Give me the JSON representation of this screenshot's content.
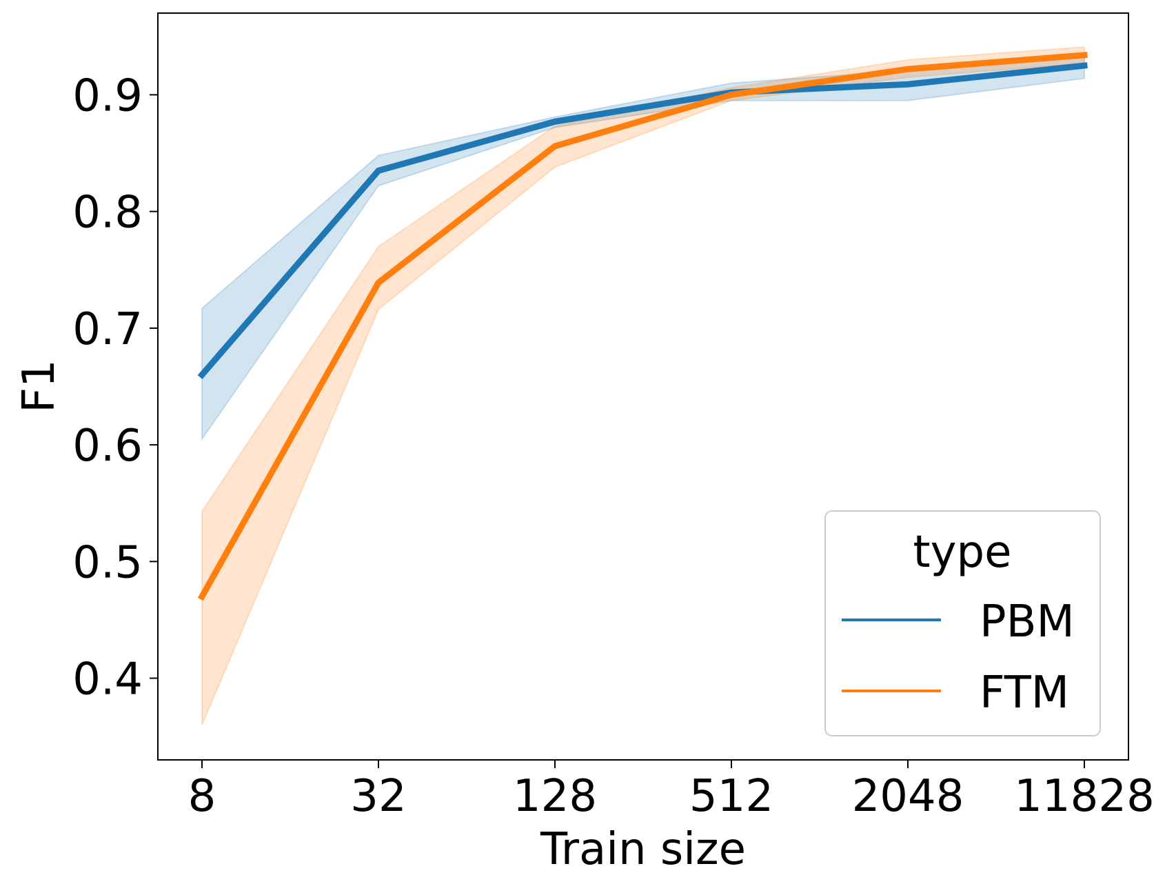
{
  "chart_data": {
    "type": "line",
    "title": "",
    "xlabel": "Train size",
    "ylabel": "F1",
    "x": [
      "8",
      "32",
      "128",
      "512",
      "2048",
      "11828"
    ],
    "ylim": [
      0.33,
      0.97
    ],
    "yticks": [
      "0.4",
      "0.5",
      "0.6",
      "0.7",
      "0.8",
      "0.9"
    ],
    "grid": false,
    "legend": {
      "title": "type",
      "placement": "bottom-right"
    },
    "series": [
      {
        "name": "PBM",
        "color": "#1f77b4",
        "values": [
          0.66,
          0.835,
          0.877,
          0.902,
          0.909,
          0.925
        ],
        "ci_lower": [
          0.605,
          0.822,
          0.872,
          0.895,
          0.895,
          0.914
        ],
        "ci_upper": [
          0.717,
          0.848,
          0.881,
          0.91,
          0.921,
          0.935
        ]
      },
      {
        "name": "FTM",
        "color": "#ff7f0e",
        "values": [
          0.47,
          0.739,
          0.856,
          0.9,
          0.922,
          0.934
        ],
        "ci_lower": [
          0.36,
          0.716,
          0.838,
          0.895,
          0.915,
          0.927
        ],
        "ci_upper": [
          0.543,
          0.77,
          0.873,
          0.906,
          0.93,
          0.941
        ]
      }
    ]
  }
}
